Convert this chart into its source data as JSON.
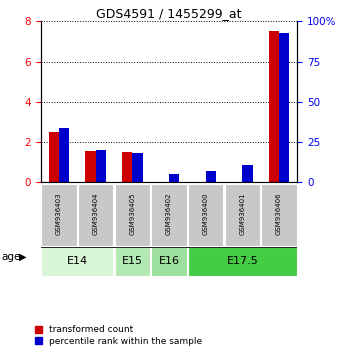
{
  "title": "GDS4591 / 1455299_at",
  "samples": [
    "GSM936403",
    "GSM936404",
    "GSM936405",
    "GSM936402",
    "GSM936400",
    "GSM936401",
    "GSM936406"
  ],
  "red_values": [
    2.5,
    1.55,
    1.5,
    0.03,
    0.03,
    0.03,
    7.5
  ],
  "blue_values": [
    34,
    20,
    18,
    5,
    7,
    11,
    93
  ],
  "ylim_left": [
    0,
    8
  ],
  "ylim_right": [
    0,
    100
  ],
  "yticks_left": [
    0,
    2,
    4,
    6,
    8
  ],
  "yticks_right": [
    0,
    25,
    50,
    75,
    100
  ],
  "yticklabels_right": [
    "0",
    "25",
    "50",
    "75",
    "100%"
  ],
  "age_groups": [
    {
      "label": "E14",
      "start": 0,
      "end": 1,
      "color": "#d8f5d8"
    },
    {
      "label": "E15",
      "start": 2,
      "end": 2,
      "color": "#b2e8b2"
    },
    {
      "label": "E16",
      "start": 3,
      "end": 3,
      "color": "#9de09d"
    },
    {
      "label": "E17.5",
      "start": 4,
      "end": 6,
      "color": "#44cc44"
    }
  ],
  "red_color": "#cc0000",
  "blue_color": "#0000cc",
  "sample_bg": "#c8c8c8",
  "bg_color": "#ffffff",
  "legend_red": "transformed count",
  "legend_blue": "percentile rank within the sample"
}
